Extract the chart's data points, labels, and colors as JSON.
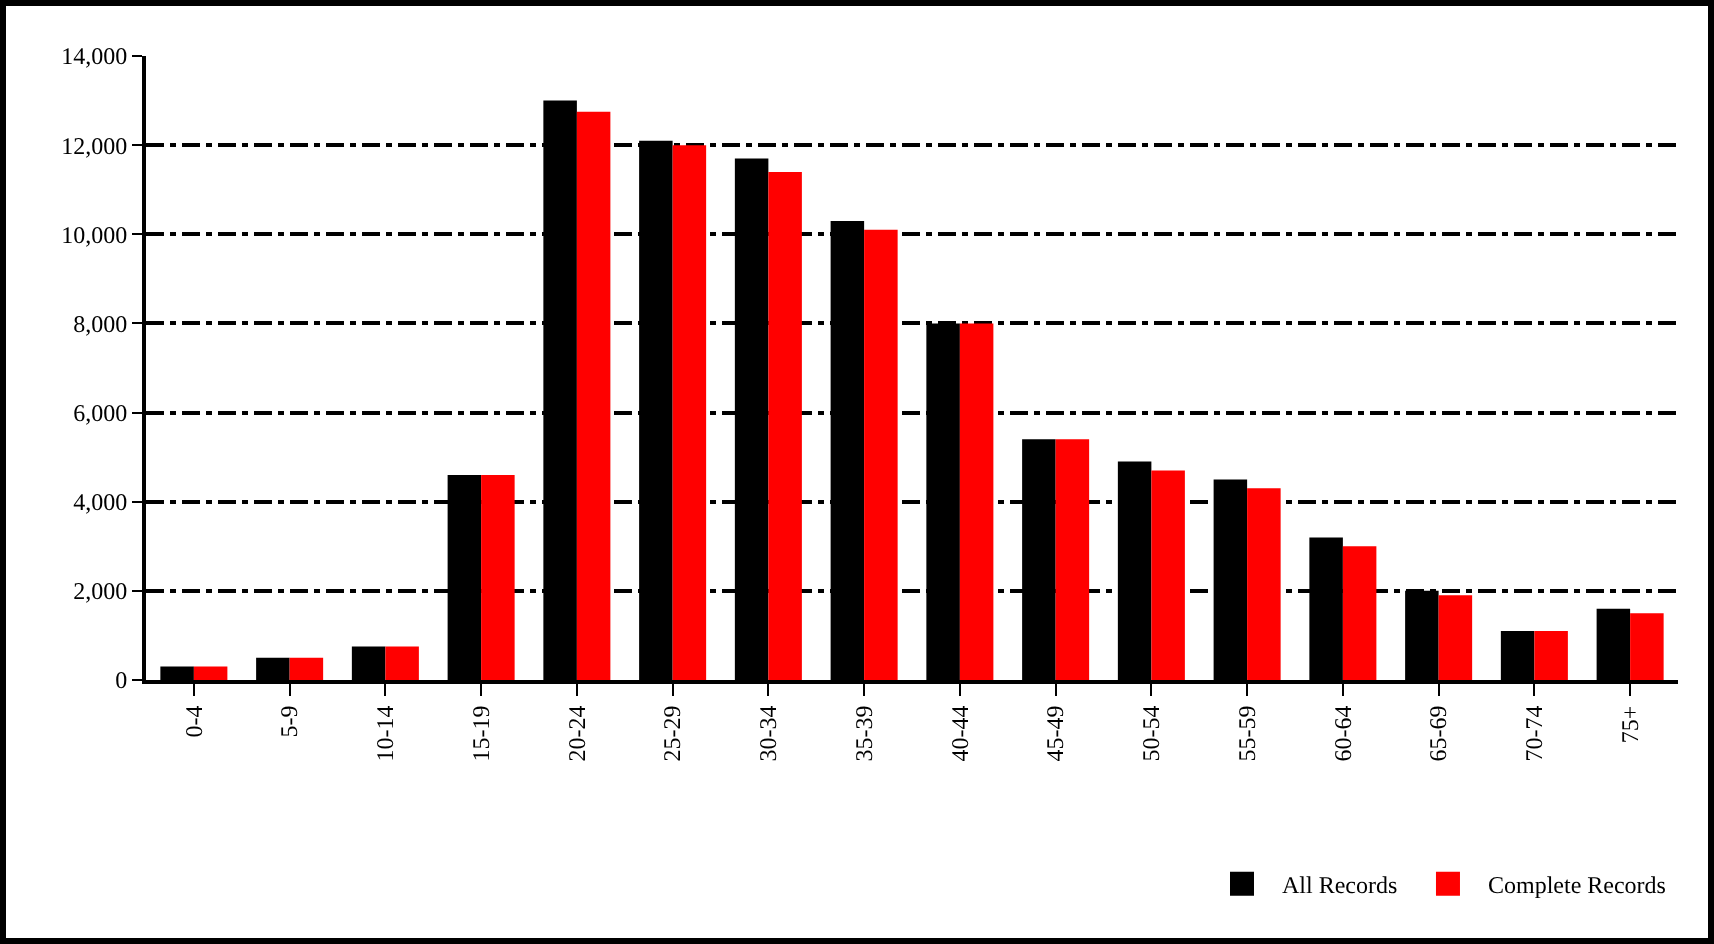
{
  "chart_data": {
    "type": "bar",
    "categories": [
      "0-4",
      "5-9",
      "10-14",
      "15-19",
      "20-24",
      "25-29",
      "30-34",
      "35-39",
      "40-44",
      "45-49",
      "50-54",
      "55-59",
      "60-64",
      "65-69",
      "70-74",
      "75+"
    ],
    "series": [
      {
        "name": "All Records",
        "color": "#000000",
        "values": [
          300,
          500,
          750,
          4600,
          13000,
          12100,
          11700,
          10300,
          8000,
          5400,
          4900,
          4500,
          3200,
          2000,
          1100,
          1600
        ]
      },
      {
        "name": "Complete Records",
        "color": "#ff0000",
        "values": [
          300,
          500,
          750,
          4600,
          12750,
          12000,
          11400,
          10100,
          8000,
          5400,
          4700,
          4300,
          3000,
          1900,
          1100,
          1500
        ]
      }
    ],
    "ylim": [
      0,
      14000
    ],
    "yticks": [
      {
        "value": 0,
        "label": "0"
      },
      {
        "value": 2000,
        "label": "2,000"
      },
      {
        "value": 4000,
        "label": "4,000"
      },
      {
        "value": 6000,
        "label": "6,000"
      },
      {
        "value": 8000,
        "label": "8,000"
      },
      {
        "value": 10000,
        "label": "10,000"
      },
      {
        "value": 12000,
        "label": "12,000"
      },
      {
        "value": 14000,
        "label": "14,000"
      }
    ],
    "grid": "y",
    "legend": "bottom right"
  }
}
